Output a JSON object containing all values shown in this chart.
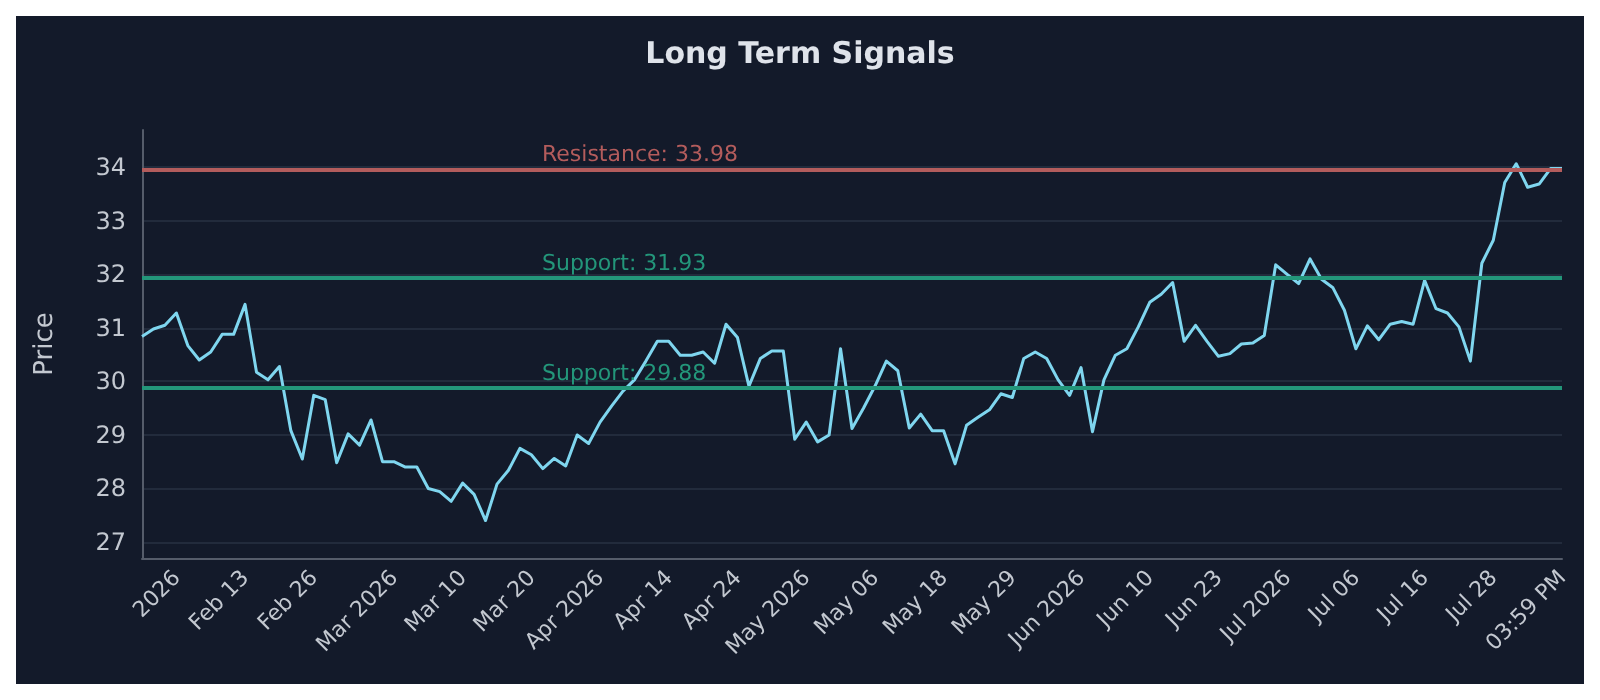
{
  "chart_data": {
    "type": "line",
    "title": "Long Term Signals",
    "ylabel": "Price",
    "categories": [
      null,
      null,
      null,
      "2026",
      null,
      null,
      null,
      null,
      null,
      "Feb 13",
      null,
      null,
      null,
      null,
      null,
      "Feb 26",
      null,
      null,
      null,
      null,
      null,
      null,
      "Mar 2026",
      null,
      null,
      null,
      null,
      null,
      "Mar 10",
      null,
      null,
      null,
      null,
      null,
      "Mar 20",
      null,
      null,
      null,
      null,
      null,
      "Apr 2026",
      null,
      null,
      null,
      null,
      null,
      "Apr 14",
      null,
      null,
      null,
      null,
      null,
      "Apr 24",
      null,
      null,
      null,
      null,
      null,
      "May 2026",
      null,
      null,
      null,
      null,
      null,
      "May 06",
      null,
      null,
      null,
      null,
      null,
      "May 18",
      null,
      null,
      null,
      null,
      null,
      "May 29",
      null,
      null,
      null,
      null,
      null,
      "Jun 2026",
      null,
      null,
      null,
      null,
      null,
      "Jun 10",
      null,
      null,
      null,
      null,
      null,
      "Jun 23",
      null,
      null,
      null,
      null,
      null,
      "Jul 2026",
      null,
      null,
      null,
      null,
      null,
      "Jul 06",
      null,
      null,
      null,
      null,
      null,
      "Jul 16",
      null,
      null,
      null,
      null,
      null,
      "Jul 28",
      null,
      null,
      null,
      null,
      null,
      "03:59 PM"
    ],
    "series": [
      {
        "color": "#7fd6ef",
        "values": [
          30.84,
          30.98,
          31.05,
          31.28,
          30.67,
          30.4,
          30.55,
          30.88,
          30.88,
          31.44,
          30.17,
          30.03,
          30.28,
          29.08,
          28.55,
          29.74,
          29.66,
          28.48,
          29.02,
          28.81,
          29.28,
          28.5,
          28.5,
          28.4,
          28.4,
          28.0,
          27.94,
          27.76,
          28.1,
          27.89,
          27.4,
          28.08,
          28.34,
          28.75,
          28.63,
          28.37,
          28.56,
          28.42,
          29.0,
          28.84,
          29.24,
          29.54,
          29.82,
          30.03,
          30.38,
          30.75,
          30.75,
          30.49,
          30.49,
          30.55,
          30.34,
          31.07,
          30.82,
          29.91,
          30.43,
          30.57,
          30.57,
          28.92,
          29.24,
          28.87,
          29.0,
          30.61,
          29.12,
          29.5,
          29.91,
          30.38,
          30.2,
          29.13,
          29.39,
          29.08,
          29.08,
          28.46,
          29.18,
          29.33,
          29.47,
          29.77,
          29.7,
          30.43,
          30.55,
          30.43,
          30.03,
          29.74,
          30.26,
          29.06,
          30.03,
          30.49,
          30.61,
          31.02,
          31.48,
          31.63,
          31.85,
          30.75,
          31.05,
          30.75,
          30.47,
          30.52,
          30.7,
          30.72,
          30.86,
          32.18,
          32.0,
          31.83,
          32.29,
          31.91,
          31.75,
          31.33,
          30.61,
          31.04,
          30.78,
          31.07,
          31.12,
          31.07,
          31.89,
          31.36,
          31.28,
          31.02,
          30.38,
          32.21,
          32.64,
          33.72,
          34.07,
          33.63,
          33.69,
          33.98,
          33.98
        ]
      }
    ],
    "ylim": [
      26.7,
      34.7
    ],
    "yticks": [
      27,
      28,
      29,
      30,
      31,
      32,
      33,
      34
    ],
    "grid": "y",
    "ref_lines": [
      {
        "axis": "y",
        "value": 33.98,
        "label": "Resistance: 33.98",
        "color": "#b35c5c"
      },
      {
        "axis": "y",
        "value": 31.93,
        "label": "Support: 31.93",
        "color": "#23967a"
      },
      {
        "axis": "y",
        "value": 29.88,
        "label": "Support: 29.88",
        "color": "#23967a"
      }
    ]
  }
}
